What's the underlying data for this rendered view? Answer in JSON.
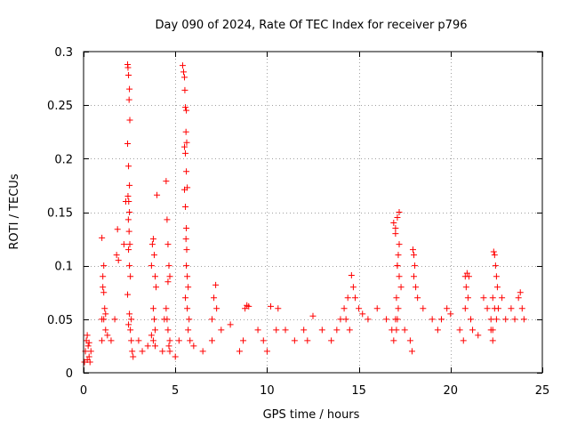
{
  "chart_data": {
    "type": "scatter",
    "title": "Day 090 of 2024, Rate Of TEC Index for receiver p796",
    "xlabel": "GPS time / hours",
    "ylabel": "ROTI / TECUs",
    "xlim": [
      0,
      25
    ],
    "ylim": [
      0,
      0.3
    ],
    "xticks": [
      0,
      5,
      10,
      15,
      20,
      25
    ],
    "yticks": [
      0,
      0.05,
      0.1,
      0.15,
      0.2,
      0.25,
      0.3
    ],
    "xtick_labels": [
      "0",
      "5",
      "10",
      "15",
      "20",
      "25"
    ],
    "ytick_labels": [
      "0",
      "0.05",
      "0.1",
      "0.15",
      "0.2",
      "0.25",
      "0.3"
    ],
    "grid": true,
    "marker": "+",
    "color": "#ff0000",
    "series": [
      {
        "name": "ROTI",
        "x": [
          0.05,
          0.1,
          0.15,
          0.2,
          0.25,
          0.3,
          0.35,
          0.4,
          0.2,
          0.3,
          1.0,
          1.05,
          1.1,
          1.0,
          1.05,
          1.1,
          1.15,
          1.2,
          1.0,
          1.1,
          1.2,
          1.3,
          1.5,
          1.7,
          1.8,
          1.85,
          1.9,
          2.2,
          2.3,
          2.4,
          2.42,
          2.45,
          2.5,
          2.48,
          2.52,
          2.4,
          2.45,
          2.5,
          2.42,
          2.46,
          2.5,
          2.44,
          2.48,
          2.52,
          2.45,
          2.5,
          2.55,
          2.4,
          2.5,
          2.6,
          2.45,
          2.55,
          2.6,
          2.65,
          2.7,
          3.0,
          3.2,
          3.5,
          3.7,
          3.75,
          3.8,
          3.85,
          3.9,
          3.95,
          4.0,
          3.8,
          3.85,
          3.9,
          3.7,
          3.8,
          3.9,
          4.3,
          4.4,
          4.5,
          4.55,
          4.6,
          4.65,
          4.7,
          4.6,
          4.5,
          4.55,
          4.6,
          4.7,
          4.65,
          4.7,
          5.0,
          5.2,
          5.4,
          5.45,
          5.5,
          5.52,
          5.55,
          5.6,
          5.58,
          5.62,
          5.5,
          5.55,
          5.6,
          5.65,
          5.5,
          5.55,
          5.6,
          5.58,
          5.62,
          5.6,
          5.65,
          5.7,
          5.55,
          5.65,
          5.75,
          5.7,
          5.8,
          6.0,
          6.5,
          7.0,
          7.1,
          7.2,
          7.25,
          7.0,
          7.5,
          8.0,
          8.5,
          8.7,
          8.8,
          8.9,
          9.0,
          9.5,
          9.8,
          10.0,
          10.2,
          10.5,
          10.6,
          11.0,
          11.5,
          12.0,
          12.2,
          12.5,
          13.0,
          13.5,
          13.8,
          14.0,
          14.2,
          14.3,
          14.5,
          14.4,
          14.6,
          14.7,
          14.8,
          15.0,
          15.2,
          15.5,
          16.0,
          16.5,
          16.8,
          16.9,
          17.0,
          17.05,
          17.1,
          17.15,
          17.2,
          17.0,
          17.1,
          17.2,
          16.9,
          17.0,
          17.1,
          17.2,
          17.3,
          17.05,
          17.15,
          17.1,
          17.5,
          17.8,
          17.9,
          18.0,
          17.95,
          18.05,
          18.0,
          18.1,
          18.2,
          18.5,
          19.0,
          19.3,
          19.5,
          19.8,
          20.0,
          20.5,
          20.7,
          20.8,
          20.9,
          21.0,
          20.85,
          20.95,
          20.8,
          21.1,
          21.2,
          21.5,
          21.8,
          22.0,
          22.2,
          22.3,
          22.35,
          22.4,
          22.45,
          22.5,
          22.55,
          22.3,
          22.4,
          22.5,
          22.2,
          22.3,
          22.6,
          22.8,
          23.0,
          23.3,
          23.5,
          23.7,
          23.8,
          23.9,
          24.0
        ],
        "y": [
          0.01,
          0.02,
          0.03,
          0.035,
          0.025,
          0.015,
          0.01,
          0.02,
          0.012,
          0.028,
          0.05,
          0.08,
          0.1,
          0.126,
          0.09,
          0.075,
          0.06,
          0.04,
          0.03,
          0.05,
          0.055,
          0.035,
          0.03,
          0.05,
          0.11,
          0.134,
          0.105,
          0.12,
          0.16,
          0.288,
          0.285,
          0.278,
          0.265,
          0.255,
          0.236,
          0.214,
          0.193,
          0.175,
          0.165,
          0.16,
          0.15,
          0.143,
          0.132,
          0.12,
          0.115,
          0.1,
          0.09,
          0.073,
          0.055,
          0.05,
          0.045,
          0.04,
          0.03,
          0.02,
          0.015,
          0.03,
          0.02,
          0.025,
          0.1,
          0.12,
          0.125,
          0.11,
          0.09,
          0.08,
          0.166,
          0.06,
          0.05,
          0.04,
          0.035,
          0.03,
          0.025,
          0.02,
          0.05,
          0.179,
          0.143,
          0.12,
          0.1,
          0.09,
          0.085,
          0.06,
          0.05,
          0.04,
          0.03,
          0.025,
          0.02,
          0.015,
          0.03,
          0.287,
          0.281,
          0.276,
          0.264,
          0.248,
          0.245,
          0.225,
          0.215,
          0.211,
          0.205,
          0.188,
          0.173,
          0.171,
          0.155,
          0.135,
          0.125,
          0.115,
          0.1,
          0.09,
          0.08,
          0.07,
          0.06,
          0.05,
          0.04,
          0.03,
          0.025,
          0.02,
          0.03,
          0.07,
          0.082,
          0.06,
          0.05,
          0.04,
          0.045,
          0.02,
          0.03,
          0.06,
          0.063,
          0.062,
          0.04,
          0.03,
          0.02,
          0.062,
          0.04,
          0.06,
          0.04,
          0.03,
          0.04,
          0.03,
          0.053,
          0.04,
          0.03,
          0.04,
          0.05,
          0.06,
          0.05,
          0.04,
          0.07,
          0.091,
          0.08,
          0.07,
          0.06,
          0.055,
          0.05,
          0.06,
          0.05,
          0.04,
          0.03,
          0.05,
          0.04,
          0.1,
          0.11,
          0.12,
          0.13,
          0.145,
          0.15,
          0.14,
          0.135,
          0.1,
          0.09,
          0.08,
          0.07,
          0.06,
          0.05,
          0.04,
          0.03,
          0.02,
          0.11,
          0.115,
          0.1,
          0.09,
          0.08,
          0.07,
          0.06,
          0.05,
          0.04,
          0.05,
          0.06,
          0.055,
          0.04,
          0.03,
          0.09,
          0.093,
          0.09,
          0.08,
          0.07,
          0.06,
          0.05,
          0.04,
          0.035,
          0.07,
          0.06,
          0.05,
          0.04,
          0.113,
          0.11,
          0.1,
          0.09,
          0.08,
          0.07,
          0.06,
          0.05,
          0.04,
          0.03,
          0.06,
          0.07,
          0.05,
          0.06,
          0.05,
          0.07,
          0.075,
          0.06,
          0.05
        ]
      }
    ]
  }
}
